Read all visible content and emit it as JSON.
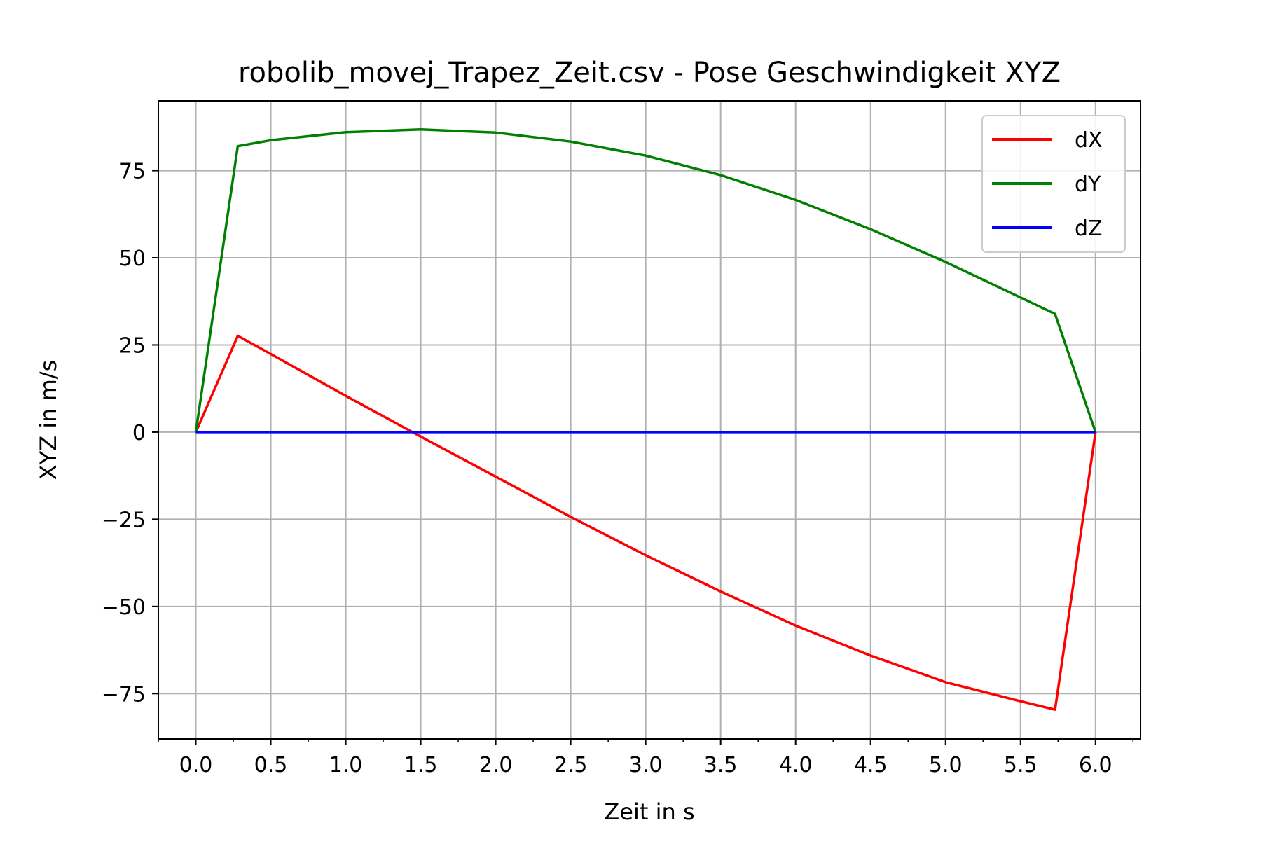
{
  "chart_data": {
    "type": "line",
    "title": "robolib_movej_Trapez_Zeit.csv - Pose Geschwindigkeit XYZ",
    "xlabel": "Zeit in s",
    "ylabel": "XYZ in m/s",
    "xlim": [
      -0.25,
      6.3
    ],
    "ylim": [
      -88,
      95
    ],
    "grid": true,
    "legend_position": "top-right",
    "x_ticks": [
      0.0,
      0.5,
      1.0,
      1.5,
      2.0,
      2.5,
      3.0,
      3.5,
      4.0,
      4.5,
      5.0,
      5.5,
      6.0
    ],
    "x_tick_labels": [
      "0.0",
      "0.5",
      "1.0",
      "1.5",
      "2.0",
      "2.5",
      "3.0",
      "3.5",
      "4.0",
      "4.5",
      "5.0",
      "5.5",
      "6.0"
    ],
    "y_ticks": [
      75,
      50,
      25,
      0,
      -25,
      -50,
      -75
    ],
    "y_tick_labels": [
      "75",
      "50",
      "25",
      "0",
      "−25",
      "−50",
      "−75"
    ],
    "series": [
      {
        "name": "dX",
        "color": "#ff0000",
        "x": [
          0.0,
          0.28,
          0.5,
          1.0,
          1.5,
          2.0,
          2.5,
          3.0,
          3.5,
          4.0,
          4.5,
          5.0,
          5.5,
          5.73,
          6.0
        ],
        "y": [
          0.0,
          27.6,
          22.4,
          10.4,
          -1.3,
          -12.8,
          -24.3,
          -35.3,
          -45.7,
          -55.5,
          -64.1,
          -71.7,
          -77.2,
          -79.6,
          0.0
        ]
      },
      {
        "name": "dY",
        "color": "#008000",
        "x": [
          0.0,
          0.28,
          0.5,
          1.0,
          1.5,
          2.0,
          2.5,
          3.0,
          3.5,
          4.0,
          4.5,
          5.0,
          5.5,
          5.73,
          6.0
        ],
        "y": [
          0.0,
          82.0,
          83.7,
          86.0,
          86.8,
          85.9,
          83.3,
          79.3,
          73.7,
          66.6,
          58.2,
          48.8,
          38.6,
          33.9,
          0.0
        ]
      },
      {
        "name": "dZ",
        "color": "#0000ff",
        "x": [
          0.0,
          6.0
        ],
        "y": [
          0.0,
          0.0
        ]
      }
    ]
  }
}
